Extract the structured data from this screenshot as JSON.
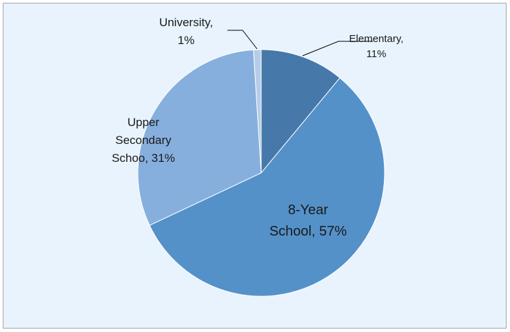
{
  "chart_data": {
    "type": "pie",
    "categories": [
      "Elementary",
      "8-Year School",
      "Upper Secondary Schoo",
      "University"
    ],
    "values": [
      11,
      57,
      31,
      1
    ],
    "data_labels": [
      [
        "Elementary,",
        "11%"
      ],
      [
        "8-Year",
        "School, 57%"
      ],
      [
        "Upper",
        "Secondary",
        "Schoo, 31%"
      ],
      [
        "University,",
        "1%"
      ]
    ],
    "colors": [
      "#4679a9",
      "#5591c9",
      "#86afdd",
      "#b5cde9"
    ],
    "start_angle_deg": 0,
    "direction": "clockwise",
    "legend": "none",
    "background": "#e8f3fd"
  }
}
